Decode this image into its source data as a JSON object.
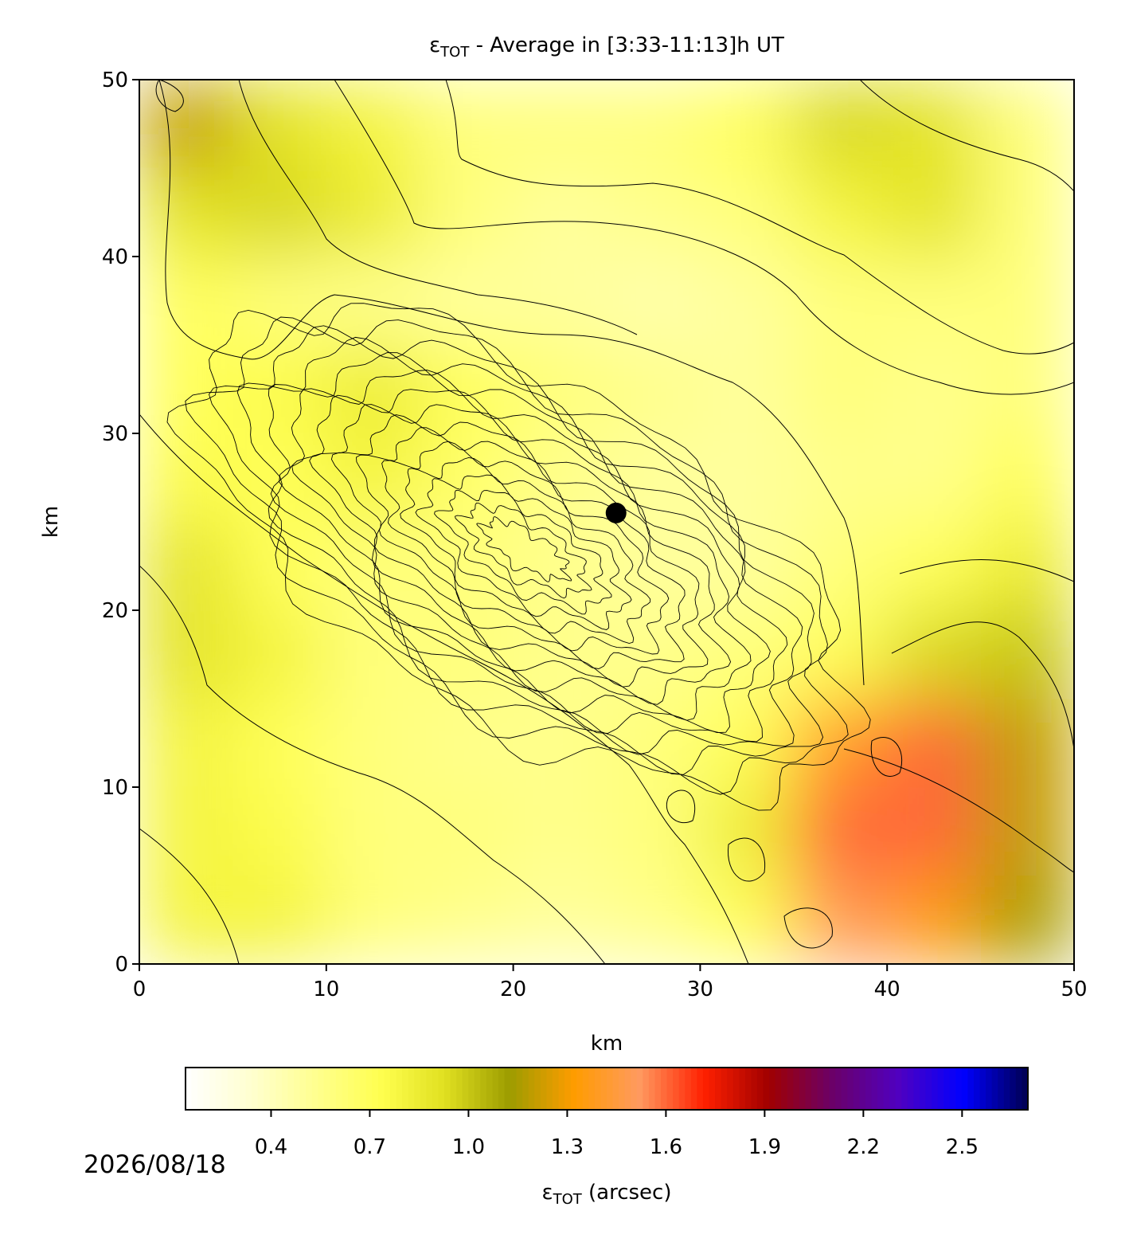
{
  "chart_data": {
    "type": "heatmap",
    "title_symbol": "ε",
    "title_subscript": "TOT",
    "title_rest": " - Average in [3:33-11:13]h UT",
    "xlabel": "km",
    "ylabel": "km",
    "xlim": [
      0,
      50
    ],
    "ylim": [
      0,
      50
    ],
    "xticks": [
      0,
      10,
      20,
      30,
      40,
      50
    ],
    "yticks": [
      0,
      10,
      20,
      30,
      40,
      50
    ],
    "x": [
      2.5,
      7.5,
      12.5,
      17.5,
      22.5,
      27.5,
      32.5,
      37.5,
      42.5,
      47.5
    ],
    "y": [
      47.5,
      42.5,
      37.5,
      32.5,
      27.5,
      22.5,
      17.5,
      12.5,
      7.5,
      2.5
    ],
    "z": [
      [
        1.2,
        0.9,
        0.8,
        0.6,
        0.6,
        0.6,
        0.7,
        0.95,
        0.9,
        0.6
      ],
      [
        0.9,
        0.95,
        0.85,
        0.6,
        0.5,
        0.55,
        0.6,
        0.8,
        0.9,
        0.6
      ],
      [
        0.7,
        0.6,
        0.55,
        0.5,
        0.5,
        0.45,
        0.5,
        0.6,
        0.6,
        0.6
      ],
      [
        0.7,
        0.75,
        0.85,
        0.7,
        0.6,
        0.55,
        0.5,
        0.6,
        0.55,
        0.6
      ],
      [
        0.75,
        0.7,
        0.8,
        0.65,
        0.55,
        0.5,
        0.5,
        0.55,
        0.55,
        0.7
      ],
      [
        0.9,
        0.7,
        0.6,
        0.6,
        0.55,
        0.5,
        0.5,
        0.6,
        0.7,
        0.85
      ],
      [
        0.9,
        0.8,
        0.6,
        0.6,
        0.55,
        0.55,
        0.6,
        0.7,
        0.95,
        1.0
      ],
      [
        0.8,
        0.7,
        0.6,
        0.55,
        0.55,
        0.6,
        0.7,
        1.4,
        1.6,
        1.2
      ],
      [
        0.8,
        0.75,
        0.6,
        0.6,
        0.55,
        0.6,
        0.85,
        1.6,
        1.6,
        1.2
      ],
      [
        0.8,
        0.8,
        0.6,
        0.55,
        0.5,
        0.55,
        0.7,
        1.5,
        1.35,
        1.15
      ]
    ],
    "markers": [
      {
        "x": 25.5,
        "y": 25.5,
        "color": "#000000"
      }
    ],
    "colormap": [
      "#ffffff",
      "#ffffd0",
      "#ffff90",
      "#ffff50",
      "#e0e020",
      "#9c9c00",
      "#ff9c00",
      "#ff9a60",
      "#ff2000",
      "#a00000",
      "#6a006a",
      "#5000c0",
      "#0000ff",
      "#000050"
    ],
    "clim": [
      0.14,
      2.7
    ],
    "cticks": [
      0.4,
      0.7,
      {
        "value": 1,
        "label": "1.0"
      },
      1.3,
      1.6,
      1.9,
      2.2,
      2.5
    ],
    "clabel_symbol": "ε",
    "clabel_subscript": "TOT",
    "clabel_rest": " (arcsec)",
    "date": "2026/08/18"
  }
}
